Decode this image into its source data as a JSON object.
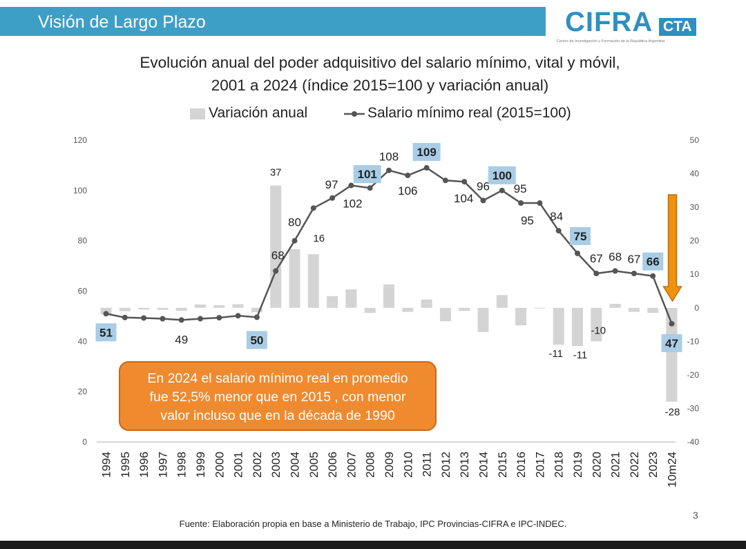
{
  "header": {
    "section_title": "Visión de Largo Plazo"
  },
  "logo": {
    "main": "CIFRA",
    "badge": "CTA",
    "subtitle": "Centro de Investigación y Formación de la República Argentina"
  },
  "title_lines": [
    "Evolución anual del poder adquisitivo del salario mínimo, vital y móvil,",
    "2001 a 2024 (índice 2015=100 y variación anual)"
  ],
  "legend": {
    "bar_label": "Variación anual",
    "line_label": "Salario mínimo real (2015=100)"
  },
  "callout_lines": [
    "En 2024 el salario mínimo real en promedio",
    "fue 52,5% menor que en 2015 , con menor",
    "valor incluso que en la década de 1990"
  ],
  "source": "Fuente: Elaboración propia en base a Ministerio de Trabajo, IPC Provincias-CIFRA e IPC-INDEC.",
  "page_number": "3",
  "colors": {
    "header_band": "#3d9fc6",
    "bar": "#d4d4d4",
    "line": "#555555",
    "highlight_label": "#a9cde6",
    "callout": "#f08a2e",
    "arrow": "#f0920f"
  },
  "chart_data": {
    "type": "bar+line",
    "categories": [
      "1994",
      "1995",
      "1996",
      "1997",
      "1998",
      "1999",
      "2000",
      "2001",
      "2002",
      "2003",
      "2004",
      "2005",
      "2006",
      "2007",
      "2008",
      "2009",
      "2010",
      "2011",
      "2012",
      "2013",
      "2014",
      "2015",
      "2016",
      "2017",
      "2018",
      "2019",
      "2020",
      "2021",
      "2022",
      "2023",
      "10m24"
    ],
    "series": [
      {
        "name": "Variación anual",
        "kind": "bar",
        "axis": "right",
        "values": [
          -2,
          -1,
          -0.5,
          -0.6,
          -0.9,
          1,
          0.8,
          1.1,
          -1.3,
          36.5,
          17.5,
          16,
          3.5,
          5.5,
          -1.5,
          7,
          -1.2,
          2.5,
          -4,
          -0.9,
          -7.2,
          3.8,
          -5.2,
          -0.1,
          -11,
          -11.4,
          -10,
          1.2,
          -1.2,
          -1.5,
          -28
        ]
      },
      {
        "name": "Salario mínimo real (2015=100)",
        "kind": "line",
        "axis": "left",
        "values": [
          51,
          49.5,
          49.3,
          49,
          48.5,
          49,
          49.4,
          50.2,
          49.6,
          68,
          80,
          93,
          97,
          102,
          101,
          108,
          106,
          109,
          104,
          103.5,
          96,
          100,
          95,
          95,
          84,
          75,
          67,
          68,
          67,
          66,
          47
        ]
      }
    ],
    "point_labels": [
      {
        "index": 0,
        "text": "51",
        "highlight": true
      },
      {
        "index": 4,
        "text": "49",
        "highlight": false
      },
      {
        "index": 8,
        "text": "50",
        "highlight": true
      },
      {
        "index": 9,
        "text": "68",
        "highlight": false
      },
      {
        "index": 10,
        "text": "80",
        "highlight": false
      },
      {
        "index": 12,
        "text": "97",
        "highlight": false
      },
      {
        "index": 13,
        "text": "102",
        "highlight": false
      },
      {
        "index": 14,
        "text": "101",
        "highlight": true
      },
      {
        "index": 15,
        "text": "108",
        "highlight": false
      },
      {
        "index": 16,
        "text": "106",
        "highlight": false
      },
      {
        "index": 17,
        "text": "109",
        "highlight": true
      },
      {
        "index": 19,
        "text": "104",
        "highlight": false
      },
      {
        "index": 20,
        "text": "96",
        "highlight": false
      },
      {
        "index": 21,
        "text": "100",
        "highlight": true
      },
      {
        "index": 22,
        "text": "95",
        "highlight": false
      },
      {
        "index": 23,
        "text": "95",
        "highlight": false
      },
      {
        "index": 24,
        "text": "84",
        "highlight": false
      },
      {
        "index": 25,
        "text": "75",
        "highlight": true
      },
      {
        "index": 26,
        "text": "67",
        "highlight": false
      },
      {
        "index": 27,
        "text": "68",
        "highlight": false
      },
      {
        "index": 28,
        "text": "67",
        "highlight": false
      },
      {
        "index": 29,
        "text": "66",
        "highlight": true
      },
      {
        "index": 30,
        "text": "47",
        "highlight": true
      }
    ],
    "bar_labels": [
      {
        "index": 9,
        "text": "37"
      },
      {
        "index": 11,
        "text": "16"
      },
      {
        "index": 24,
        "text": "-11"
      },
      {
        "index": 25,
        "text": "-11"
      },
      {
        "index": 26,
        "text": "-10"
      },
      {
        "index": 30,
        "text": "-28"
      }
    ],
    "left_axis": {
      "range": [
        0,
        120
      ],
      "ticks": [
        "0",
        "20",
        "40",
        "60",
        "80",
        "100",
        "120"
      ]
    },
    "right_axis": {
      "range": [
        -40,
        50
      ],
      "ticks": [
        "-40",
        "-30",
        "-20",
        "-10",
        "0",
        "10",
        "20",
        "30",
        "40",
        "50"
      ]
    },
    "grid": false,
    "legend_position": "top",
    "annotations": [
      {
        "type": "down-arrow",
        "near": "10m24"
      }
    ]
  }
}
